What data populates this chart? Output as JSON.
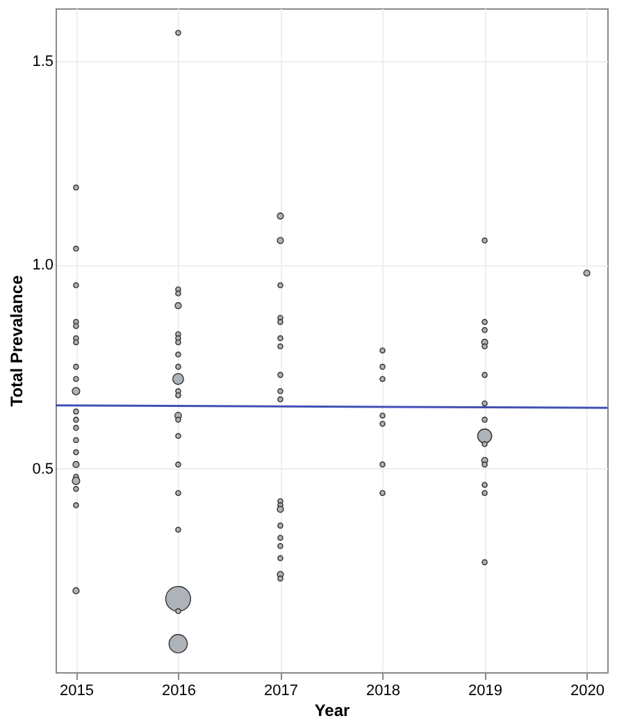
{
  "chart_data": {
    "type": "bubble",
    "xlabel": "Year",
    "ylabel": "Total Prevalance",
    "xlim": [
      2014.8,
      2020.2
    ],
    "xticks": [
      2015,
      2016,
      2017,
      2018,
      2019,
      2020
    ],
    "ylim": [
      0,
      1.63
    ],
    "yticks": [
      0.5,
      {
        "value": 1.0,
        "label": "1.0"
      },
      1.5
    ],
    "grid": true,
    "marker": "circle",
    "series": [
      {
        "color": "#aeb2b9",
        "x": [
          2015,
          2015,
          2015,
          2015,
          2015,
          2015,
          2015,
          2015,
          2015,
          2015,
          2015,
          2015,
          2015,
          2015,
          2015,
          2015,
          2015,
          2015,
          2015,
          2015,
          2015,
          2016,
          2016,
          2016,
          2016,
          2016,
          2016,
          2016,
          2016,
          2016,
          2016,
          2016,
          2016,
          2016,
          2016,
          2016,
          2016,
          2016,
          2016,
          2016,
          2016,
          2016,
          2017,
          2017,
          2017,
          2017,
          2017,
          2017,
          2017,
          2017,
          2017,
          2017,
          2017,
          2017,
          2017,
          2017,
          2017,
          2017,
          2017,
          2017,
          2017,
          2018,
          2018,
          2018,
          2018,
          2018,
          2018,
          2018,
          2019,
          2019,
          2019,
          2019,
          2019,
          2019,
          2019,
          2019,
          2019,
          2019,
          2019,
          2019,
          2019,
          2019,
          2019,
          2020
        ],
        "values": [
          1.19,
          1.04,
          0.95,
          0.86,
          0.85,
          0.82,
          0.81,
          0.75,
          0.72,
          0.69,
          0.64,
          0.62,
          0.6,
          0.57,
          0.54,
          0.51,
          0.48,
          0.47,
          0.45,
          0.41,
          0.2,
          1.57,
          0.94,
          0.93,
          0.9,
          0.83,
          0.82,
          0.81,
          0.78,
          0.75,
          0.72,
          0.69,
          0.68,
          0.63,
          0.62,
          0.58,
          0.51,
          0.44,
          0.35,
          0.18,
          0.15,
          0.07,
          1.12,
          1.06,
          0.95,
          0.87,
          0.86,
          0.82,
          0.8,
          0.73,
          0.69,
          0.67,
          0.42,
          0.41,
          0.4,
          0.36,
          0.33,
          0.31,
          0.28,
          0.24,
          0.23,
          0.79,
          0.75,
          0.72,
          0.63,
          0.61,
          0.51,
          0.44,
          1.06,
          0.86,
          0.84,
          0.81,
          0.8,
          0.73,
          0.66,
          0.62,
          0.58,
          0.56,
          0.52,
          0.51,
          0.46,
          0.44,
          0.27,
          0.98
        ],
        "sizes": [
          0.04,
          0.04,
          0.04,
          0.04,
          0.04,
          0.04,
          0.04,
          0.04,
          0.04,
          0.09,
          0.04,
          0.04,
          0.04,
          0.04,
          0.04,
          0.06,
          0.04,
          0.09,
          0.04,
          0.04,
          0.06,
          0.04,
          0.04,
          0.04,
          0.06,
          0.04,
          0.04,
          0.04,
          0.04,
          0.04,
          0.19,
          0.04,
          0.04,
          0.07,
          0.04,
          0.04,
          0.04,
          0.04,
          0.04,
          1,
          0.04,
          0.54,
          0.06,
          0.06,
          0.04,
          0.04,
          0.04,
          0.04,
          0.04,
          0.04,
          0.04,
          0.04,
          0.04,
          0.04,
          0.06,
          0.04,
          0.04,
          0.04,
          0.04,
          0.06,
          0.04,
          0.04,
          0.04,
          0.04,
          0.04,
          0.04,
          0.04,
          0.04,
          0.04,
          0.04,
          0.04,
          0.06,
          0.04,
          0.04,
          0.04,
          0.04,
          0.32,
          0.04,
          0.06,
          0.04,
          0.04,
          0.04,
          0.04,
          0.06
        ]
      },
      {
        "type": "line",
        "marker": "none",
        "color": "#3f51b5",
        "x": [
          2014.8,
          2020.2
        ],
        "values": [
          0.655,
          0.649
        ]
      }
    ]
  }
}
